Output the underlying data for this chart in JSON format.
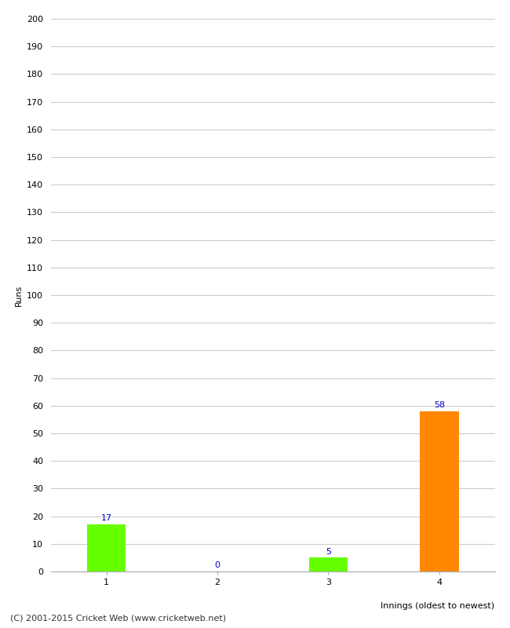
{
  "categories": [
    "1",
    "2",
    "3",
    "4"
  ],
  "values": [
    17,
    0,
    5,
    58
  ],
  "bar_colors": [
    "#66ff00",
    "#66ff00",
    "#66ff00",
    "#ff8800"
  ],
  "ylabel": "Runs",
  "xlabel": "Innings (oldest to newest)",
  "ylim": [
    0,
    200
  ],
  "yticks": [
    0,
    10,
    20,
    30,
    40,
    50,
    60,
    70,
    80,
    90,
    100,
    110,
    120,
    130,
    140,
    150,
    160,
    170,
    180,
    190,
    200
  ],
  "label_color": "#0000cc",
  "label_fontsize": 8,
  "axis_fontsize": 8,
  "ylabel_fontsize": 8,
  "xlabel_fontsize": 8,
  "background_color": "#ffffff",
  "footer_text": "(C) 2001-2015 Cricket Web (www.cricketweb.net)",
  "footer_fontsize": 8,
  "grid_color": "#cccccc",
  "bar_width": 0.35
}
